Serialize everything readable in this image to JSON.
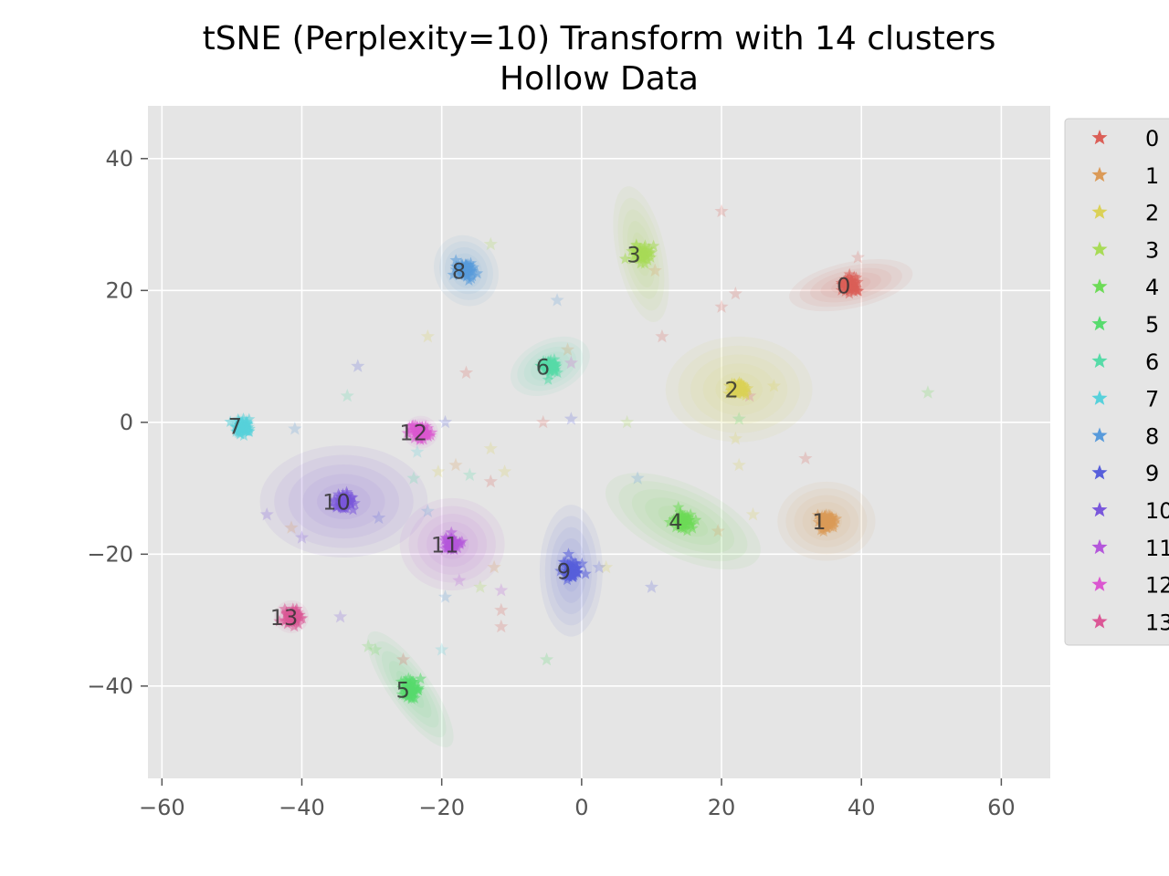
{
  "chart_data": {
    "type": "scatter",
    "title": "tSNE (Perplexity=10) Transform with 14 clusters",
    "subtitle": "Hollow Data",
    "xlim": [
      -62,
      67
    ],
    "ylim": [
      -54,
      48
    ],
    "x_ticks": [
      {
        "value": -60,
        "label": "−60"
      },
      {
        "value": -40,
        "label": "−40"
      },
      {
        "value": -20,
        "label": "−20"
      },
      {
        "value": 0,
        "label": "0"
      },
      {
        "value": 20,
        "label": "20"
      },
      {
        "value": 40,
        "label": "40"
      },
      {
        "value": 60,
        "label": "60"
      }
    ],
    "y_ticks": [
      {
        "value": 40,
        "label": "40"
      },
      {
        "value": 20,
        "label": "20"
      },
      {
        "value": 0,
        "label": "0"
      },
      {
        "value": -20,
        "label": "−20"
      },
      {
        "value": -40,
        "label": "−40"
      }
    ],
    "grid": true,
    "legend_position": "right",
    "marker": "star",
    "series": [
      {
        "name": "0",
        "color": "#db5f57",
        "center": [
          38.5,
          20.8
        ],
        "spread": [
          9,
          3.5
        ],
        "angle": 12
      },
      {
        "name": "1",
        "color": "#db9a57",
        "center": [
          35.0,
          -15.0
        ],
        "spread": [
          7,
          6
        ],
        "angle": 0
      },
      {
        "name": "2",
        "color": "#dbd157",
        "center": [
          22.5,
          5.0
        ],
        "spread": [
          10.5,
          8
        ],
        "angle": 0
      },
      {
        "name": "3",
        "color": "#a8db57",
        "center": [
          8.5,
          25.5
        ],
        "spread": [
          3.5,
          10.5
        ],
        "angle": 12
      },
      {
        "name": "4",
        "color": "#6ddb57",
        "center": [
          14.5,
          -15.0
        ],
        "spread": [
          12,
          5.5
        ],
        "angle": -25
      },
      {
        "name": "5",
        "color": "#57db6e",
        "center": [
          -24.5,
          -40.5
        ],
        "spread": [
          3,
          10.5
        ],
        "angle": 35
      },
      {
        "name": "6",
        "color": "#57dba8",
        "center": [
          -4.5,
          8.5
        ],
        "spread": [
          6,
          4
        ],
        "angle": 25
      },
      {
        "name": "7",
        "color": "#57d1db",
        "center": [
          -48.5,
          -0.5
        ],
        "spread": [
          1.8,
          1.8
        ],
        "angle": 0
      },
      {
        "name": "8",
        "color": "#579adb",
        "center": [
          -16.5,
          23.0
        ],
        "spread": [
          4.5,
          5.5
        ],
        "angle": 25
      },
      {
        "name": "9",
        "color": "#575fdb",
        "center": [
          -1.5,
          -22.5
        ],
        "spread": [
          4.5,
          10
        ],
        "angle": 0
      },
      {
        "name": "10",
        "color": "#7a57db",
        "center": [
          -34.0,
          -12.0
        ],
        "spread": [
          12,
          8.5
        ],
        "angle": 0
      },
      {
        "name": "11",
        "color": "#b457db",
        "center": [
          -18.5,
          -18.5
        ],
        "spread": [
          7.5,
          7
        ],
        "angle": 0
      },
      {
        "name": "12",
        "color": "#db57d0",
        "center": [
          -23.0,
          -1.5
        ],
        "spread": [
          2.5,
          2.5
        ],
        "angle": 0
      },
      {
        "name": "13",
        "color": "#db5796",
        "center": [
          -41.5,
          -29.5
        ],
        "spread": [
          2.5,
          2.5
        ],
        "angle": 0
      }
    ],
    "outliers": [
      {
        "s": 0,
        "x": 39.5,
        "y": 25.0
      },
      {
        "s": 0,
        "x": 20.0,
        "y": 32.0
      },
      {
        "s": 0,
        "x": 22.0,
        "y": 19.5
      },
      {
        "s": 0,
        "x": 20.0,
        "y": 17.5
      },
      {
        "s": 0,
        "x": 11.5,
        "y": 13.0
      },
      {
        "s": 0,
        "x": 32.0,
        "y": -5.5
      },
      {
        "s": 0,
        "x": -13.0,
        "y": -9.0
      },
      {
        "s": 0,
        "x": -16.5,
        "y": 7.5
      },
      {
        "s": 0,
        "x": -5.5,
        "y": 0.0
      },
      {
        "s": 0,
        "x": -11.5,
        "y": -31.0
      },
      {
        "s": 0,
        "x": -11.5,
        "y": -28.5
      },
      {
        "s": 0,
        "x": -25.5,
        "y": -36.0
      },
      {
        "s": 1,
        "x": 10.5,
        "y": 23.0
      },
      {
        "s": 1,
        "x": -18.0,
        "y": -6.5
      },
      {
        "s": 1,
        "x": -41.5,
        "y": -16.0
      },
      {
        "s": 1,
        "x": -12.5,
        "y": -22.0
      },
      {
        "s": 1,
        "x": 19.5,
        "y": -16.5
      },
      {
        "s": 1,
        "x": -2.0,
        "y": 11.0
      },
      {
        "s": 2,
        "x": 27.5,
        "y": 5.5
      },
      {
        "s": 2,
        "x": 22.0,
        "y": -2.5
      },
      {
        "s": 2,
        "x": 22.5,
        "y": -6.5
      },
      {
        "s": 2,
        "x": 24.5,
        "y": -14.0
      },
      {
        "s": 2,
        "x": 3.5,
        "y": -22.0
      },
      {
        "s": 2,
        "x": -22.0,
        "y": 13.0
      },
      {
        "s": 2,
        "x": -13.0,
        "y": -4.0
      },
      {
        "s": 2,
        "x": -11.0,
        "y": -7.5
      },
      {
        "s": 2,
        "x": -20.5,
        "y": -7.5
      },
      {
        "s": 3,
        "x": -13.0,
        "y": 27.0
      },
      {
        "s": 3,
        "x": 6.5,
        "y": 0.0
      },
      {
        "s": 3,
        "x": -14.5,
        "y": -25.0
      },
      {
        "s": 4,
        "x": 49.5,
        "y": 4.5
      },
      {
        "s": 4,
        "x": -29.5,
        "y": -34.5
      },
      {
        "s": 4,
        "x": -30.5,
        "y": -34.0
      },
      {
        "s": 5,
        "x": -5.0,
        "y": -36.0
      },
      {
        "s": 5,
        "x": 22.5,
        "y": 0.5
      },
      {
        "s": 6,
        "x": -33.5,
        "y": 4.0
      },
      {
        "s": 6,
        "x": -16.0,
        "y": -8.0
      },
      {
        "s": 6,
        "x": -24.0,
        "y": -8.5
      },
      {
        "s": 7,
        "x": -23.5,
        "y": -4.5
      },
      {
        "s": 7,
        "x": -20.0,
        "y": -34.5
      },
      {
        "s": 8,
        "x": -3.5,
        "y": 18.5
      },
      {
        "s": 8,
        "x": 8.0,
        "y": -8.5
      },
      {
        "s": 8,
        "x": -41.0,
        "y": -1.0
      },
      {
        "s": 8,
        "x": -19.5,
        "y": -26.5
      },
      {
        "s": 8,
        "x": -22.0,
        "y": -13.5
      },
      {
        "s": 9,
        "x": -32.0,
        "y": 8.5
      },
      {
        "s": 9,
        "x": -1.5,
        "y": 0.5
      },
      {
        "s": 9,
        "x": 10.0,
        "y": -25.0
      },
      {
        "s": 9,
        "x": 2.5,
        "y": -22.0
      },
      {
        "s": 9,
        "x": -19.5,
        "y": 0.0
      },
      {
        "s": 9,
        "x": -29.0,
        "y": -14.5
      },
      {
        "s": 10,
        "x": -45.0,
        "y": -14.0
      },
      {
        "s": 10,
        "x": -40.0,
        "y": -17.5
      },
      {
        "s": 10,
        "x": -34.5,
        "y": -29.5
      },
      {
        "s": 11,
        "x": -11.5,
        "y": -25.5
      },
      {
        "s": 11,
        "x": -17.5,
        "y": -24.0
      },
      {
        "s": 12,
        "x": -1.5,
        "y": 9.0
      },
      {
        "s": 13,
        "x": 24.0,
        "y": 4.0
      }
    ]
  }
}
